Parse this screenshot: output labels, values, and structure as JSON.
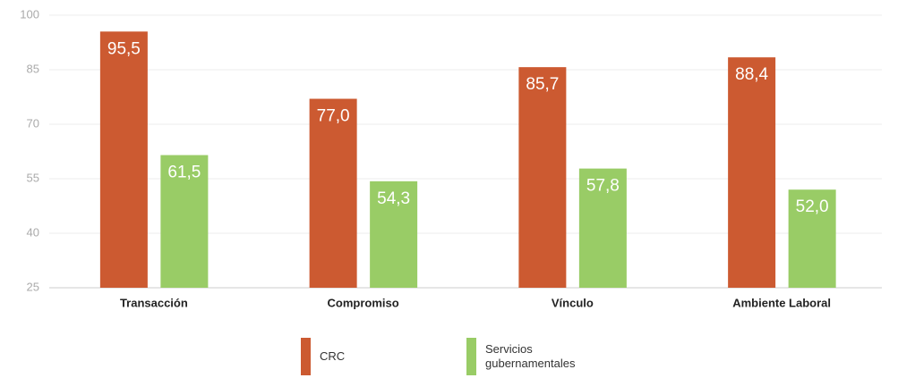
{
  "chart_data": {
    "type": "bar",
    "categories": [
      "Transacción",
      "Compromiso",
      "Vínculo",
      "Ambiente Laboral"
    ],
    "series": [
      {
        "name": "CRC",
        "color": "#cc5a31",
        "values": [
          95.5,
          77.0,
          85.7,
          88.4
        ],
        "value_labels": [
          "95,5",
          "77,0",
          "85,7",
          "88,4"
        ]
      },
      {
        "name": "Servicios gubernamentales",
        "color": "#99cc66",
        "values": [
          61.5,
          54.3,
          57.8,
          52.0
        ],
        "value_labels": [
          "61,5",
          "54,3",
          "57,8",
          "52,0"
        ]
      }
    ],
    "ylim": [
      25,
      100
    ],
    "yticks": [
      25,
      40,
      55,
      70,
      85,
      100
    ],
    "grid": true,
    "legend": "bottom"
  }
}
